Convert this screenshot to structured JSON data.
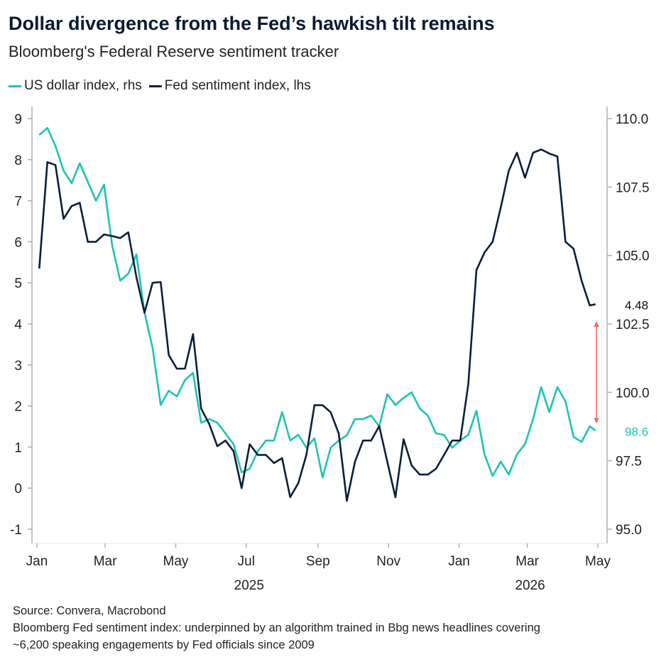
{
  "chart_data": {
    "type": "line",
    "title": "Dollar divergence from the Fed’s hawkish tilt remains",
    "subtitle": "Bloomberg's Federal Reserve sentiment tracker",
    "legend_placement": "top-left",
    "grid": false,
    "colors": {
      "usd": "#1dc4b0",
      "fed": "#0b1e3a",
      "arrow": "#e8736a",
      "axis": "#b0b0b0"
    },
    "x": [
      "2025-01-03",
      "2025-01-10",
      "2025-01-17",
      "2025-01-24",
      "2025-01-31",
      "2025-02-07",
      "2025-02-14",
      "2025-02-21",
      "2025-02-28",
      "2025-03-07",
      "2025-03-14",
      "2025-03-21",
      "2025-03-28",
      "2025-04-04",
      "2025-04-11",
      "2025-04-18",
      "2025-04-25",
      "2025-05-02",
      "2025-05-09",
      "2025-05-16",
      "2025-05-23",
      "2025-05-30",
      "2025-06-06",
      "2025-06-13",
      "2025-06-20",
      "2025-06-27",
      "2025-07-04",
      "2025-07-11",
      "2025-07-18",
      "2025-07-25",
      "2025-08-01",
      "2025-08-08",
      "2025-08-15",
      "2025-08-22",
      "2025-08-29",
      "2025-09-05",
      "2025-09-12",
      "2025-09-19",
      "2025-09-26",
      "2025-10-03",
      "2025-10-10",
      "2025-10-17",
      "2025-10-24",
      "2025-10-31",
      "2025-11-07",
      "2025-11-14",
      "2025-11-21",
      "2025-11-28",
      "2025-12-05",
      "2025-12-12",
      "2025-12-19",
      "2025-12-26",
      "2026-01-02",
      "2026-01-09",
      "2026-01-16",
      "2026-01-23",
      "2026-01-30",
      "2026-02-06",
      "2026-02-13",
      "2026-02-20",
      "2026-02-27",
      "2026-03-06",
      "2026-03-13",
      "2026-03-20",
      "2026-03-27",
      "2026-04-03",
      "2026-04-10",
      "2026-04-17",
      "2026-04-24",
      "2026-04-29"
    ],
    "series": [
      {
        "name": "US dollar index, rhs",
        "axis": "right",
        "values": [
          109.4,
          109.66,
          109.0,
          108.1,
          107.64,
          108.37,
          107.69,
          107.0,
          107.59,
          105.38,
          104.08,
          104.34,
          105.04,
          102.92,
          101.62,
          99.54,
          100.06,
          99.85,
          100.45,
          100.71,
          98.89,
          99.02,
          98.89,
          98.5,
          98.11,
          97.08,
          97.21,
          97.85,
          98.24,
          98.24,
          99.28,
          98.24,
          98.45,
          97.98,
          98.32,
          96.89,
          97.98,
          98.24,
          98.43,
          99.02,
          99.02,
          99.15,
          98.76,
          99.93,
          99.54,
          99.8,
          100.0,
          99.41,
          99.15,
          98.5,
          98.45,
          97.98,
          98.24,
          98.45,
          99.33,
          97.73,
          96.95,
          97.47,
          97.0,
          97.73,
          98.11,
          99.02,
          100.19,
          99.28,
          100.19,
          99.67,
          98.37,
          98.19,
          98.76,
          98.6
        ]
      },
      {
        "name": "Fed sentiment index, lhs",
        "axis": "left",
        "values": [
          5.35,
          7.94,
          7.87,
          6.56,
          6.87,
          6.95,
          6.0,
          6.0,
          6.18,
          6.14,
          6.09,
          6.23,
          5.14,
          4.27,
          5.0,
          5.02,
          3.24,
          2.91,
          2.91,
          3.75,
          1.94,
          1.56,
          1.02,
          1.16,
          0.9,
          0.0,
          1.07,
          0.81,
          0.81,
          0.61,
          0.73,
          -0.22,
          0.12,
          0.81,
          2.02,
          2.02,
          1.85,
          1.33,
          -0.31,
          0.64,
          1.16,
          1.16,
          1.51,
          0.64,
          -0.22,
          1.19,
          0.55,
          0.33,
          0.33,
          0.47,
          0.81,
          1.16,
          1.16,
          2.54,
          5.31,
          5.74,
          6.0,
          6.83,
          7.73,
          8.17,
          7.56,
          8.17,
          8.25,
          8.15,
          8.08,
          6.0,
          5.83,
          5.05,
          4.45,
          4.48
        ]
      }
    ],
    "y_left": {
      "range": [
        -1,
        9
      ],
      "ticks": [
        "9",
        "8",
        "7",
        "6",
        "5",
        "4",
        "3",
        "2",
        "1",
        "0",
        "-1"
      ]
    },
    "y_right": {
      "range": [
        95,
        110
      ],
      "ticks": [
        "110.0",
        "107.5",
        "105.0",
        "102.5",
        "100.0",
        "97.5",
        "95.0"
      ]
    },
    "x_range": [
      "2025-01-01",
      "2026-05-01"
    ],
    "x_ticks": [
      {
        "date": "2025-01-01",
        "label": "Jan"
      },
      {
        "date": "2025-03-01",
        "label": "Mar"
      },
      {
        "date": "2025-05-01",
        "label": "May"
      },
      {
        "date": "2025-07-01",
        "label": "Jul"
      },
      {
        "date": "2025-09-01",
        "label": "Sep"
      },
      {
        "date": "2025-11-01",
        "label": "Nov"
      },
      {
        "date": "2026-01-01",
        "label": "Jan"
      },
      {
        "date": "2026-03-01",
        "label": "Mar"
      },
      {
        "date": "2026-05-01",
        "label": "May"
      }
    ],
    "year_labels": [
      {
        "date": "2025-07-01",
        "label": "2025"
      },
      {
        "date": "2026-03-01",
        "label": "2026"
      }
    ],
    "end_labels": {
      "fed": "4.48",
      "usd": "98.6"
    },
    "annotation": "double-headed arrow between Fed sentiment and dollar index end values"
  },
  "legend": [
    {
      "label": "US dollar index, rhs",
      "color": "#1dc4b0"
    },
    {
      "label": "Fed sentiment index, lhs",
      "color": "#0b1e3a"
    }
  ],
  "notes": {
    "source": "Source: Convera, Macrobond",
    "line2": "Bloomberg Fed sentiment index: underpinned by an algorithm trained in Bbg news headlines covering",
    "line3": "~6,200 speaking engagements by Fed officials since 2009"
  }
}
